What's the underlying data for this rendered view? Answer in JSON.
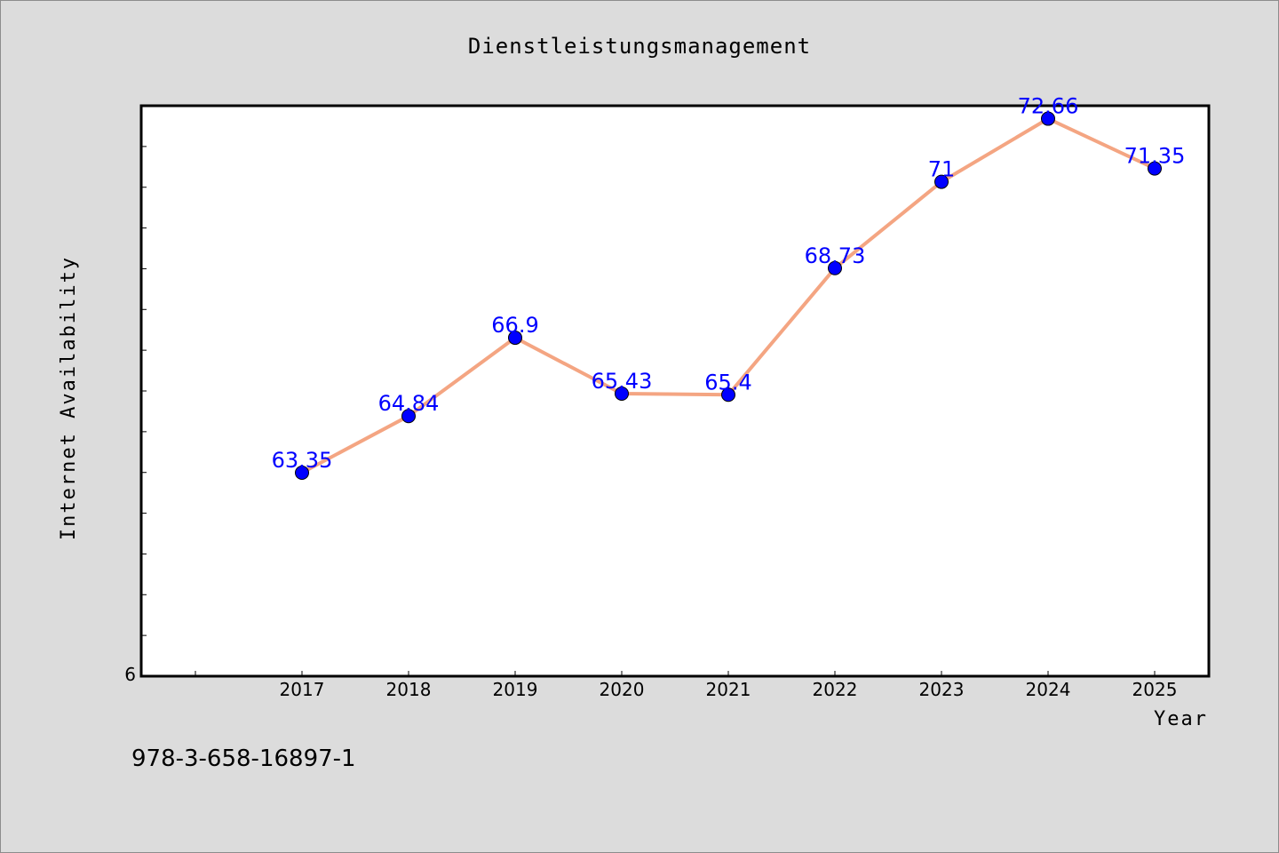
{
  "chart_data": {
    "type": "line",
    "title": "Dienstleistungsmanagement",
    "xlabel": "Year",
    "ylabel": "Internet Availability",
    "categories": [
      "2017",
      "2018",
      "2019",
      "2020",
      "2021",
      "2022",
      "2023",
      "2024",
      "2025"
    ],
    "values": [
      63.35,
      64.84,
      66.9,
      65.43,
      65.4,
      68.73,
      71,
      72.66,
      71.35
    ],
    "data_labels": [
      "63.35",
      "64.84",
      "66.9",
      "65.43",
      "65.4",
      "68.73",
      "71",
      "72.66",
      "71.35"
    ],
    "y_tick_label": "6",
    "ylim": [
      58,
      73
    ],
    "y_minor_tick_count": 14,
    "grid": false,
    "legend": "none",
    "colors": {
      "line": "#f4a582",
      "marker": "#0000ff",
      "data_label": "#0000ff",
      "plot_background": "#ffffff",
      "page_background": "#dcdcdc"
    }
  },
  "footnote": "978-3-658-16897-1"
}
